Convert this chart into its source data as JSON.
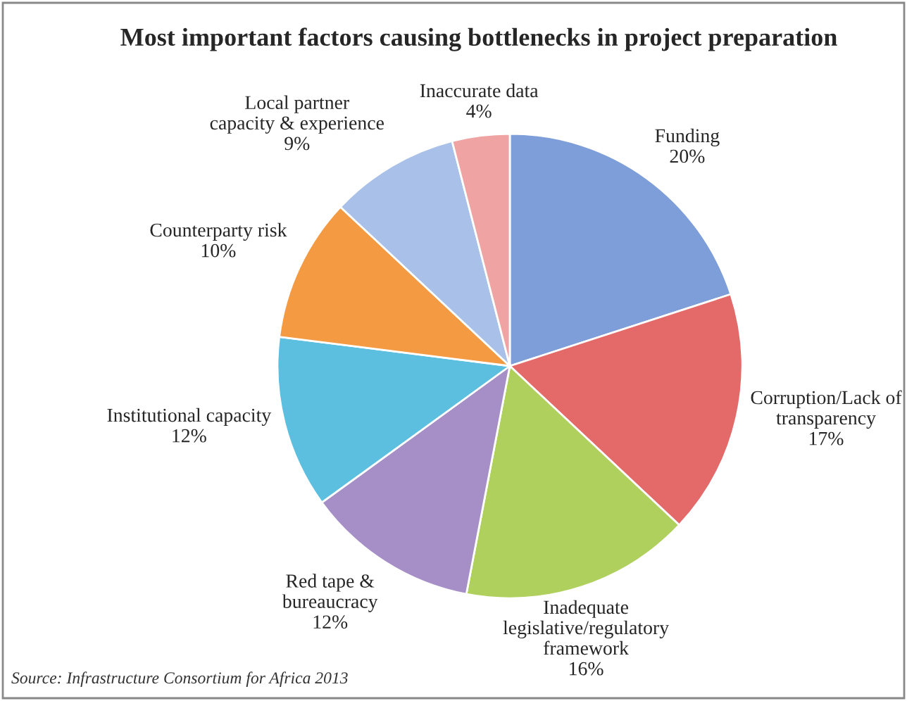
{
  "chart_data": {
    "type": "pie",
    "title": "Most important factors causing bottlenecks in project preparation",
    "categories": [
      "Funding",
      "Corruption/Lack of\ntransparency",
      "Inadequate\nlegislative/regulatory\nframework",
      "Red tape &\nbureaucracy",
      "Institutional capacity",
      "Counterparty risk",
      "Local partner\ncapacity & experience",
      "Inaccurate data"
    ],
    "values": [
      20,
      17,
      16,
      12,
      12,
      10,
      9,
      4
    ],
    "value_labels": [
      "20%",
      "17%",
      "16%",
      "12%",
      "12%",
      "10%",
      "9%",
      "4%"
    ],
    "colors": [
      "#7d9ed8",
      "#e46a6a",
      "#afd05c",
      "#a58fc6",
      "#5cbfe0",
      "#f39a42",
      "#a9c1e8",
      "#f0a3a3"
    ],
    "annotations": [
      "Source: Infrastructure Consortium for Africa 2013"
    ]
  }
}
